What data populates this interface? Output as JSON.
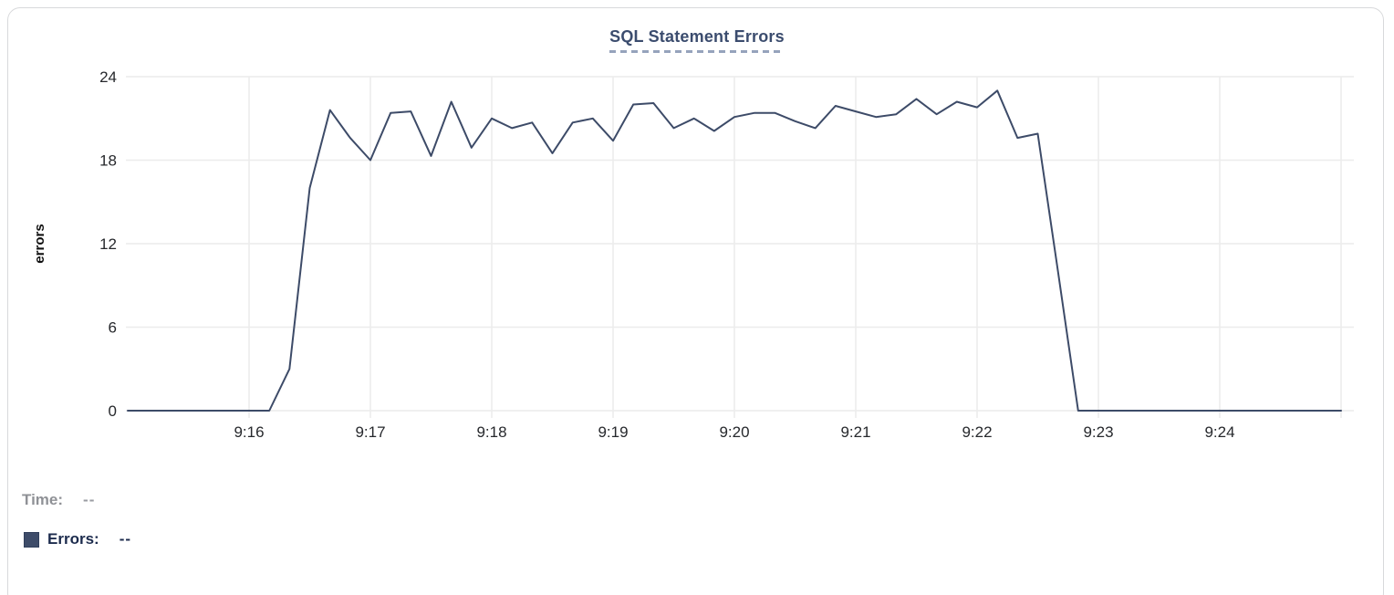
{
  "card": {
    "title": "SQL Statement Errors"
  },
  "legend": {
    "time_label": "Time:",
    "time_value": "--",
    "errors_label": "Errors:",
    "errors_value": "--",
    "swatch_color": "#3e4c69"
  },
  "chart_data": {
    "type": "line",
    "title": "SQL Statement Errors",
    "xlabel": "",
    "ylabel": "errors",
    "ylim": [
      0,
      24
    ],
    "y_ticks": [
      0,
      6,
      12,
      18,
      24
    ],
    "x_ticks": [
      "9:16",
      "9:17",
      "9:18",
      "9:19",
      "9:20",
      "9:21",
      "9:22",
      "9:23",
      "9:24"
    ],
    "x_gridlines_extra": [
      "9:25"
    ],
    "x_range": [
      "9:15:00",
      "9:25:00"
    ],
    "grid": true,
    "legend_position": "bottom-left",
    "line_color": "#3d4b68",
    "grid_color": "#ececec",
    "axis_text_color": "#26282c",
    "series": [
      {
        "name": "Errors",
        "x": [
          "9:15:00",
          "9:15:10",
          "9:15:20",
          "9:15:30",
          "9:15:40",
          "9:15:50",
          "9:16:00",
          "9:16:10",
          "9:16:20",
          "9:16:30",
          "9:16:40",
          "9:16:50",
          "9:17:00",
          "9:17:10",
          "9:17:20",
          "9:17:30",
          "9:17:40",
          "9:17:50",
          "9:18:00",
          "9:18:10",
          "9:18:20",
          "9:18:30",
          "9:18:40",
          "9:18:50",
          "9:19:00",
          "9:19:10",
          "9:19:20",
          "9:19:30",
          "9:19:40",
          "9:19:50",
          "9:20:00",
          "9:20:10",
          "9:20:20",
          "9:20:30",
          "9:20:40",
          "9:20:50",
          "9:21:00",
          "9:21:10",
          "9:21:20",
          "9:21:30",
          "9:21:40",
          "9:21:50",
          "9:22:00",
          "9:22:10",
          "9:22:20",
          "9:22:30",
          "9:22:40",
          "9:22:50",
          "9:23:00",
          "9:23:10",
          "9:23:20",
          "9:23:30",
          "9:23:40",
          "9:23:50",
          "9:24:00",
          "9:24:10",
          "9:24:20",
          "9:24:30",
          "9:24:40",
          "9:24:50",
          "9:25:00"
        ],
        "values": [
          0,
          0,
          0,
          0,
          0,
          0,
          0,
          0,
          3,
          16,
          21.6,
          19.6,
          18,
          21.4,
          21.5,
          18.3,
          22.2,
          18.9,
          21,
          20.3,
          20.7,
          18.5,
          20.7,
          21,
          19.4,
          22,
          22.1,
          20.3,
          21,
          20.1,
          21.1,
          21.4,
          21.4,
          20.8,
          20.3,
          21.9,
          21.5,
          21.1,
          21.3,
          22.4,
          21.3,
          22.2,
          21.8,
          23,
          19.6,
          19.9,
          10,
          0,
          0,
          0,
          0,
          0,
          0,
          0,
          0,
          0,
          0,
          0,
          0,
          0,
          0
        ]
      }
    ]
  }
}
